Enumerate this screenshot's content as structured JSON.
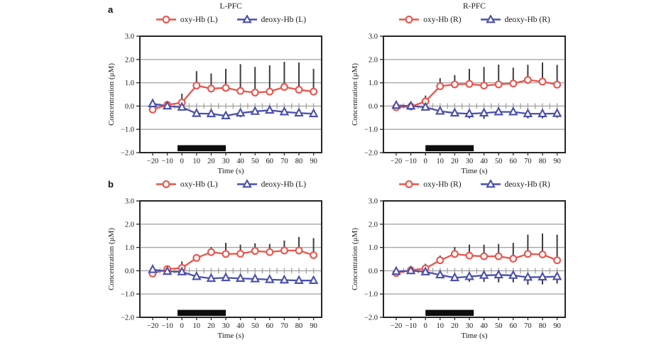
{
  "figure": {
    "panel_a_label": "a",
    "panel_b_label": "b",
    "background": "#ffffff",
    "colors": {
      "oxy": "#e9554d",
      "deoxy": "#4a50ab",
      "error_bar": "#3d3d3d",
      "grid": "#a6a6a6",
      "frame": "#262626",
      "task_bar": "#0d0d0d",
      "text": "#1a1a1a"
    }
  },
  "axes_common": {
    "xlabel": "Time (s)",
    "ylabel": "Concentration (μM)",
    "x_ticks": [
      -20,
      -10,
      0,
      10,
      20,
      30,
      40,
      50,
      60,
      70,
      80,
      90
    ],
    "x_tick_labels": [
      "−20",
      "−10",
      "0",
      "10",
      "20",
      "30",
      "40",
      "50",
      "60",
      "70",
      "80",
      "90"
    ],
    "y_ticks": [
      3.0,
      2.0,
      1.0,
      0.0,
      -1.0,
      -2.0
    ],
    "y_tick_labels": [
      "3.0",
      "2.0",
      "1.0",
      "0.0",
      "−1.0",
      "−2.0"
    ],
    "ylim": [
      -2.0,
      3.0
    ],
    "grid": "horizontal",
    "legend_position": "top"
  },
  "chart_data": [
    {
      "id": "a-left",
      "panel": "a",
      "title": "L-PFC",
      "type": "line",
      "x": [
        -20,
        -10,
        0,
        10,
        20,
        30,
        40,
        50,
        60,
        70,
        80,
        90
      ],
      "series": [
        {
          "name": "oxy-Hb (L)",
          "marker": "circle",
          "color": "#e9554d",
          "values": [
            -0.15,
            0.05,
            0.15,
            0.88,
            0.75,
            0.78,
            0.65,
            0.58,
            0.62,
            0.82,
            0.7,
            0.62
          ],
          "err_up": [
            0.05,
            0.05,
            0.38,
            0.62,
            0.65,
            0.82,
            1.15,
            1.1,
            1.13,
            1.08,
            1.17,
            0.98
          ],
          "err_down": [
            0.15,
            0,
            0,
            0,
            0,
            0,
            0,
            0,
            0,
            0,
            0,
            0
          ]
        },
        {
          "name": "deoxy-Hb (L)",
          "marker": "triangle",
          "color": "#4a50ab",
          "values": [
            0.1,
            0.0,
            -0.05,
            -0.32,
            -0.33,
            -0.42,
            -0.3,
            -0.23,
            -0.18,
            -0.25,
            -0.3,
            -0.33
          ],
          "err_up": [
            0,
            0,
            0,
            0,
            0,
            0,
            0,
            0,
            0,
            0,
            0,
            0
          ],
          "err_down": [
            0.12,
            0.1,
            0.1,
            0.15,
            0.12,
            0.15,
            0.18,
            0.1,
            0.1,
            0.12,
            0.12,
            0.12
          ]
        }
      ],
      "task_bar": {
        "x_start": -3,
        "x_end": 30
      }
    },
    {
      "id": "a-right",
      "panel": "a",
      "title": "R-PFC",
      "type": "line",
      "x": [
        -20,
        -10,
        0,
        10,
        20,
        30,
        40,
        50,
        60,
        70,
        80,
        90
      ],
      "series": [
        {
          "name": "oxy-Hb (R)",
          "marker": "circle",
          "color": "#e9554d",
          "values": [
            -0.05,
            -0.02,
            0.2,
            0.85,
            0.93,
            0.95,
            0.88,
            0.93,
            0.97,
            1.12,
            1.05,
            0.92
          ],
          "err_up": [
            0.1,
            0.1,
            0.25,
            0.35,
            0.4,
            0.65,
            0.8,
            0.85,
            0.68,
            0.65,
            0.82,
            0.85
          ],
          "err_down": [
            0.15,
            0.15,
            0,
            0,
            0,
            0,
            0,
            0,
            0,
            0,
            0,
            0
          ]
        },
        {
          "name": "deoxy-Hb (R)",
          "marker": "triangle",
          "color": "#4a50ab",
          "values": [
            0.03,
            0.0,
            -0.05,
            -0.22,
            -0.3,
            -0.33,
            -0.3,
            -0.25,
            -0.25,
            -0.33,
            -0.33,
            -0.32
          ],
          "err_up": [
            0,
            0,
            0,
            0,
            0,
            0,
            0,
            0,
            0,
            0,
            0,
            0
          ],
          "err_down": [
            0.12,
            0.15,
            0.1,
            0.12,
            0.15,
            0.2,
            0.25,
            0.15,
            0.15,
            0.2,
            0.2,
            0.18
          ]
        }
      ],
      "task_bar": {
        "x_start": 0,
        "x_end": 33
      }
    },
    {
      "id": "b-left",
      "panel": "b",
      "title": "",
      "type": "line",
      "x": [
        -20,
        -10,
        0,
        10,
        20,
        30,
        40,
        50,
        60,
        70,
        80,
        90
      ],
      "series": [
        {
          "name": "oxy-Hb (L)",
          "marker": "circle",
          "color": "#e9554d",
          "values": [
            -0.12,
            0.07,
            0.12,
            0.55,
            0.8,
            0.72,
            0.73,
            0.85,
            0.8,
            0.87,
            0.87,
            0.67
          ],
          "err_up": [
            0.08,
            0.05,
            0.28,
            0.1,
            0.22,
            0.48,
            0.39,
            0.33,
            0.35,
            0.43,
            0.58,
            0.73
          ],
          "err_down": [
            0.15,
            0,
            0,
            0,
            0,
            0,
            0,
            0,
            0,
            0,
            0,
            0
          ]
        },
        {
          "name": "deoxy-Hb (L)",
          "marker": "triangle",
          "color": "#4a50ab",
          "values": [
            0.05,
            -0.03,
            -0.05,
            -0.25,
            -0.33,
            -0.3,
            -0.33,
            -0.35,
            -0.38,
            -0.4,
            -0.42,
            -0.42
          ],
          "err_up": [
            0,
            0,
            0,
            0,
            0,
            0,
            0,
            0,
            0,
            0,
            0,
            0
          ],
          "err_down": [
            0.2,
            0.08,
            0.08,
            0.1,
            0.08,
            0.1,
            0.08,
            0.08,
            0.08,
            0.08,
            0.08,
            0.08
          ]
        }
      ],
      "task_bar": {
        "x_start": -3,
        "x_end": 30
      }
    },
    {
      "id": "b-right",
      "panel": "b",
      "title": "",
      "type": "line",
      "x": [
        -20,
        -10,
        0,
        10,
        20,
        30,
        40,
        50,
        60,
        70,
        80,
        90
      ],
      "series": [
        {
          "name": "oxy-Hb (R)",
          "marker": "circle",
          "color": "#e9554d",
          "values": [
            -0.1,
            0.02,
            0.1,
            0.45,
            0.72,
            0.65,
            0.62,
            0.62,
            0.52,
            0.72,
            0.7,
            0.45
          ],
          "err_up": [
            0.08,
            0.08,
            0.2,
            0.2,
            0.3,
            0.47,
            0.5,
            0.53,
            0.68,
            0.83,
            0.9,
            1.1
          ],
          "err_down": [
            0.12,
            0,
            0,
            0,
            0,
            0,
            0,
            0,
            0,
            0,
            0,
            0
          ]
        },
        {
          "name": "deoxy-Hb (R)",
          "marker": "triangle",
          "color": "#4a50ab",
          "values": [
            -0.03,
            0.0,
            -0.05,
            -0.18,
            -0.3,
            -0.25,
            -0.2,
            -0.18,
            -0.2,
            -0.28,
            -0.27,
            -0.25
          ],
          "err_up": [
            0,
            0,
            0,
            0,
            0,
            0,
            0,
            0,
            0,
            0,
            0,
            0
          ],
          "err_down": [
            0.12,
            0.1,
            0.1,
            0.1,
            0.12,
            0.22,
            0.28,
            0.32,
            0.3,
            0.32,
            0.32,
            0.3
          ]
        }
      ],
      "task_bar": {
        "x_start": 0,
        "x_end": 33
      }
    }
  ]
}
